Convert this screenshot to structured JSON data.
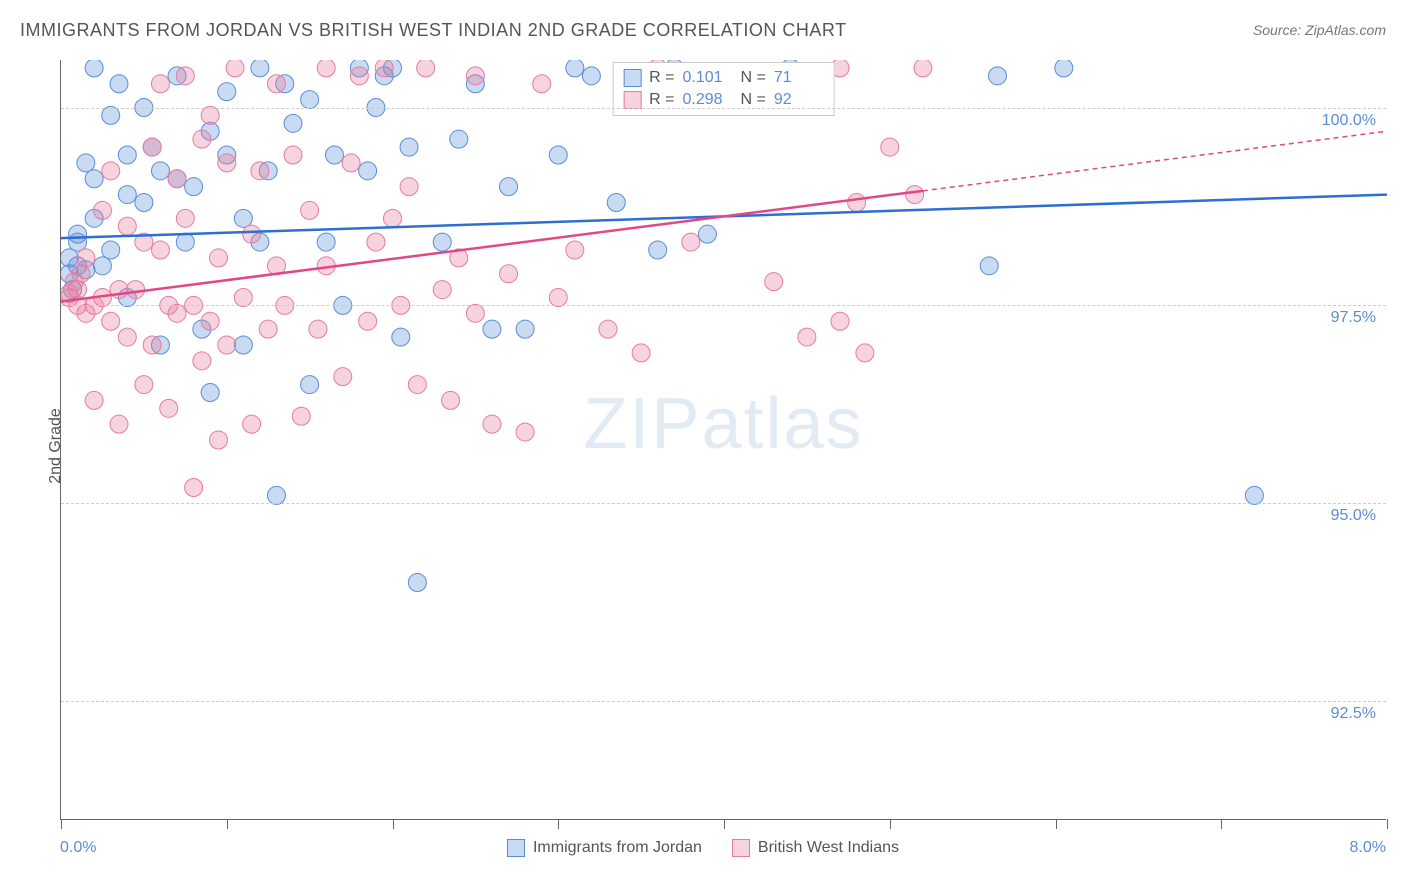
{
  "title": "IMMIGRANTS FROM JORDAN VS BRITISH WEST INDIAN 2ND GRADE CORRELATION CHART",
  "source": "Source: ZipAtlas.com",
  "watermark_bold": "ZIP",
  "watermark_thin": "atlas",
  "chart": {
    "type": "scatter",
    "xlim": [
      0.0,
      8.0
    ],
    "ylim": [
      91.0,
      100.6
    ],
    "xlabel_min": "0.0%",
    "xlabel_max": "8.0%",
    "xtick_positions": [
      0,
      1,
      2,
      3,
      4,
      5,
      6,
      7,
      8
    ],
    "ygrid": [
      {
        "value": 92.5,
        "label": "92.5%"
      },
      {
        "value": 95.0,
        "label": "95.0%"
      },
      {
        "value": 97.5,
        "label": "97.5%"
      },
      {
        "value": 100.0,
        "label": "100.0%"
      }
    ],
    "yaxis_title": "2nd Grade",
    "background_color": "#ffffff",
    "grid_color": "#cccccc",
    "axis_color": "#666666",
    "label_color": "#5b8dd6",
    "marker_radius": 9,
    "marker_opacity": 0.45,
    "line_width": 2.5,
    "series": [
      {
        "name": "Immigrants from Jordan",
        "color_fill": "rgba(100, 150, 220, 0.35)",
        "color_stroke": "#5b8dd6",
        "line_color": "#2c6fd1",
        "R": "0.101",
        "N": "71",
        "trend": {
          "x0": 0.0,
          "y0": 98.35,
          "x1": 8.0,
          "y1": 98.9,
          "solid_until": 8.0
        },
        "points": [
          [
            0.05,
            98.1
          ],
          [
            0.05,
            97.9
          ],
          [
            0.1,
            98.3
          ],
          [
            0.1,
            98.0
          ],
          [
            0.1,
            98.4
          ],
          [
            0.15,
            97.95
          ],
          [
            0.15,
            99.3
          ],
          [
            0.2,
            99.1
          ],
          [
            0.2,
            100.5
          ],
          [
            0.2,
            98.6
          ],
          [
            0.25,
            98.0
          ],
          [
            0.3,
            98.2
          ],
          [
            0.3,
            99.9
          ],
          [
            0.35,
            100.3
          ],
          [
            0.4,
            97.6
          ],
          [
            0.4,
            98.9
          ],
          [
            0.4,
            99.4
          ],
          [
            0.5,
            98.8
          ],
          [
            0.5,
            100.0
          ],
          [
            0.55,
            99.5
          ],
          [
            0.6,
            97.0
          ],
          [
            0.6,
            99.2
          ],
          [
            0.7,
            99.1
          ],
          [
            0.7,
            100.4
          ],
          [
            0.75,
            98.3
          ],
          [
            0.8,
            99.0
          ],
          [
            0.85,
            97.2
          ],
          [
            0.9,
            99.7
          ],
          [
            0.9,
            96.4
          ],
          [
            1.0,
            99.4
          ],
          [
            1.0,
            100.2
          ],
          [
            1.1,
            97.0
          ],
          [
            1.1,
            98.6
          ],
          [
            1.2,
            100.5
          ],
          [
            1.2,
            98.3
          ],
          [
            1.25,
            99.2
          ],
          [
            1.3,
            95.1
          ],
          [
            1.35,
            100.3
          ],
          [
            1.4,
            99.8
          ],
          [
            1.5,
            96.5
          ],
          [
            1.5,
            100.1
          ],
          [
            1.6,
            98.3
          ],
          [
            1.65,
            99.4
          ],
          [
            1.7,
            97.5
          ],
          [
            1.8,
            100.5
          ],
          [
            1.85,
            99.2
          ],
          [
            1.9,
            100.0
          ],
          [
            1.95,
            100.4
          ],
          [
            2.0,
            100.5
          ],
          [
            2.05,
            97.1
          ],
          [
            2.1,
            99.5
          ],
          [
            2.15,
            94.0
          ],
          [
            2.3,
            98.3
          ],
          [
            2.4,
            99.6
          ],
          [
            2.5,
            100.3
          ],
          [
            2.6,
            97.2
          ],
          [
            2.7,
            99.0
          ],
          [
            2.8,
            97.2
          ],
          [
            3.0,
            99.4
          ],
          [
            3.1,
            100.5
          ],
          [
            3.2,
            100.4
          ],
          [
            3.35,
            98.8
          ],
          [
            3.6,
            98.2
          ],
          [
            3.7,
            100.5
          ],
          [
            3.9,
            98.4
          ],
          [
            4.4,
            100.5
          ],
          [
            5.6,
            98.0
          ],
          [
            5.65,
            100.4
          ],
          [
            6.05,
            100.5
          ],
          [
            7.2,
            95.1
          ],
          [
            0.07,
            97.7
          ]
        ]
      },
      {
        "name": "British West Indians",
        "color_fill": "rgba(230, 130, 160, 0.35)",
        "color_stroke": "#e77ba0",
        "line_color": "#e04888",
        "R": "0.298",
        "N": "92",
        "trend": {
          "x0": 0.0,
          "y0": 97.55,
          "x1": 8.0,
          "y1": 99.7,
          "solid_until": 5.2
        },
        "points": [
          [
            0.05,
            97.65
          ],
          [
            0.05,
            97.6
          ],
          [
            0.08,
            97.8
          ],
          [
            0.1,
            97.5
          ],
          [
            0.1,
            97.7
          ],
          [
            0.12,
            97.9
          ],
          [
            0.15,
            97.4
          ],
          [
            0.15,
            98.1
          ],
          [
            0.2,
            96.3
          ],
          [
            0.2,
            97.5
          ],
          [
            0.25,
            97.6
          ],
          [
            0.25,
            98.7
          ],
          [
            0.3,
            97.3
          ],
          [
            0.3,
            99.2
          ],
          [
            0.35,
            96.0
          ],
          [
            0.35,
            97.7
          ],
          [
            0.4,
            97.1
          ],
          [
            0.4,
            98.5
          ],
          [
            0.45,
            97.7
          ],
          [
            0.5,
            96.5
          ],
          [
            0.5,
            98.3
          ],
          [
            0.55,
            99.5
          ],
          [
            0.55,
            97.0
          ],
          [
            0.6,
            98.2
          ],
          [
            0.6,
            100.3
          ],
          [
            0.65,
            97.5
          ],
          [
            0.65,
            96.2
          ],
          [
            0.7,
            99.1
          ],
          [
            0.7,
            97.4
          ],
          [
            0.75,
            100.4
          ],
          [
            0.75,
            98.6
          ],
          [
            0.8,
            95.2
          ],
          [
            0.8,
            97.5
          ],
          [
            0.85,
            96.8
          ],
          [
            0.85,
            99.6
          ],
          [
            0.9,
            97.3
          ],
          [
            0.9,
            99.9
          ],
          [
            0.95,
            95.8
          ],
          [
            0.95,
            98.1
          ],
          [
            1.0,
            97.0
          ],
          [
            1.0,
            99.3
          ],
          [
            1.05,
            100.5
          ],
          [
            1.1,
            97.6
          ],
          [
            1.15,
            98.4
          ],
          [
            1.15,
            96.0
          ],
          [
            1.2,
            99.2
          ],
          [
            1.25,
            97.2
          ],
          [
            1.3,
            100.3
          ],
          [
            1.3,
            98.0
          ],
          [
            1.35,
            97.5
          ],
          [
            1.4,
            99.4
          ],
          [
            1.45,
            96.1
          ],
          [
            1.5,
            98.7
          ],
          [
            1.55,
            97.2
          ],
          [
            1.6,
            100.5
          ],
          [
            1.6,
            98.0
          ],
          [
            1.7,
            96.6
          ],
          [
            1.75,
            99.3
          ],
          [
            1.8,
            100.4
          ],
          [
            1.85,
            97.3
          ],
          [
            1.9,
            98.3
          ],
          [
            1.95,
            100.5
          ],
          [
            2.0,
            98.6
          ],
          [
            2.05,
            97.5
          ],
          [
            2.1,
            99.0
          ],
          [
            2.15,
            96.5
          ],
          [
            2.2,
            100.5
          ],
          [
            2.3,
            97.7
          ],
          [
            2.35,
            96.3
          ],
          [
            2.4,
            98.1
          ],
          [
            2.5,
            100.4
          ],
          [
            2.5,
            97.4
          ],
          [
            2.6,
            96.0
          ],
          [
            2.7,
            97.9
          ],
          [
            2.8,
            95.9
          ],
          [
            2.9,
            100.3
          ],
          [
            3.0,
            97.6
          ],
          [
            3.1,
            98.2
          ],
          [
            3.3,
            97.2
          ],
          [
            3.5,
            96.9
          ],
          [
            3.6,
            100.5
          ],
          [
            3.8,
            98.3
          ],
          [
            4.0,
            100.1
          ],
          [
            4.3,
            97.8
          ],
          [
            4.5,
            97.1
          ],
          [
            4.7,
            100.5
          ],
          [
            4.7,
            97.3
          ],
          [
            4.8,
            98.8
          ],
          [
            4.85,
            96.9
          ],
          [
            5.0,
            99.5
          ],
          [
            5.15,
            98.9
          ],
          [
            5.2,
            100.5
          ]
        ]
      }
    ]
  },
  "bottom_legend": [
    {
      "label": "Immigrants from Jordan",
      "fill": "rgba(100,150,220,0.35)",
      "stroke": "#5b8dd6"
    },
    {
      "label": "British West Indians",
      "fill": "rgba(230,130,160,0.35)",
      "stroke": "#e77ba0"
    }
  ]
}
